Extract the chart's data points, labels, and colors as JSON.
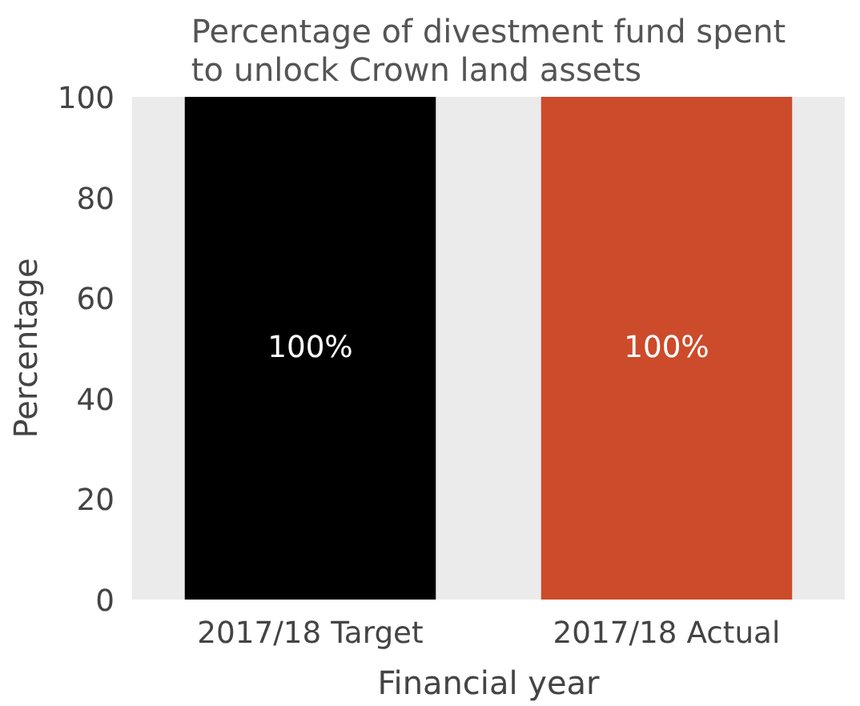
{
  "chart_data": {
    "type": "bar",
    "title": "Percentage of divestment fund spent\nto unlock Crown land assets",
    "xlabel": "Financial year",
    "ylabel": "Percentage",
    "categories": [
      "2017/18 Target",
      "2017/18 Actual"
    ],
    "values": [
      100,
      100
    ],
    "colors": [
      "#000000",
      "#cc4b2a"
    ],
    "value_labels": [
      "100%",
      "100%"
    ],
    "ylim": [
      0,
      100
    ],
    "yticks": [
      0,
      20,
      40,
      60,
      80,
      100
    ],
    "grid": false
  }
}
